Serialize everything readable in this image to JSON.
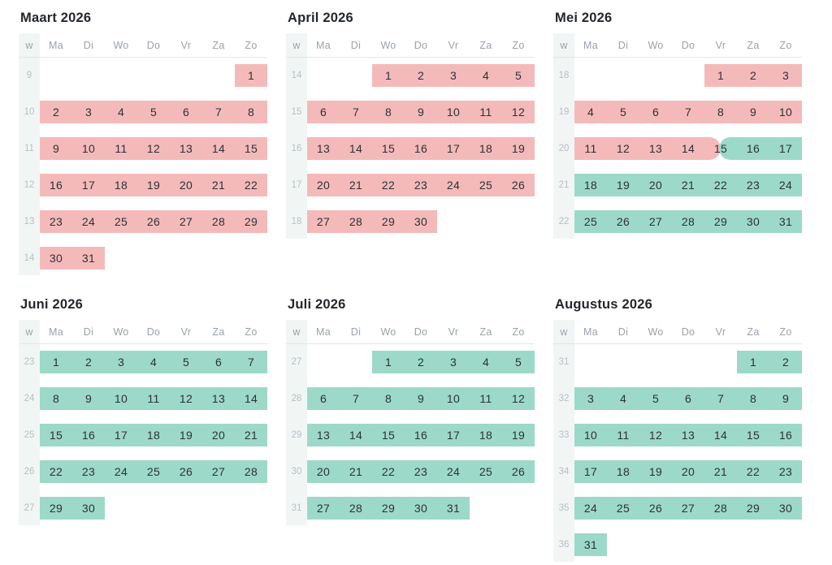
{
  "colors": {
    "pink": "#f4baba",
    "teal": "#9cd9c9",
    "week_strip": "#f1f6f5"
  },
  "weekday_headers": [
    "w",
    "Ma",
    "Di",
    "Wo",
    "Do",
    "Vr",
    "Za",
    "Zo"
  ],
  "calendars": [
    {
      "title": "Maart 2026",
      "weeks": [
        {
          "num": "9",
          "days": [
            "",
            "",
            "",
            "",
            "",
            "",
            "1"
          ],
          "bands": [
            {
              "start": 6,
              "end": 7,
              "color": "pink"
            }
          ]
        },
        {
          "num": "10",
          "days": [
            "2",
            "3",
            "4",
            "5",
            "6",
            "7",
            "8"
          ],
          "bands": [
            {
              "start": 0,
              "end": 7,
              "color": "pink"
            }
          ]
        },
        {
          "num": "11",
          "days": [
            "9",
            "10",
            "11",
            "12",
            "13",
            "14",
            "15"
          ],
          "bands": [
            {
              "start": 0,
              "end": 7,
              "color": "pink"
            }
          ]
        },
        {
          "num": "12",
          "days": [
            "16",
            "17",
            "18",
            "19",
            "20",
            "21",
            "22"
          ],
          "bands": [
            {
              "start": 0,
              "end": 7,
              "color": "pink"
            }
          ]
        },
        {
          "num": "13",
          "days": [
            "23",
            "24",
            "25",
            "26",
            "27",
            "28",
            "29"
          ],
          "bands": [
            {
              "start": 0,
              "end": 7,
              "color": "pink"
            }
          ]
        },
        {
          "num": "14",
          "days": [
            "30",
            "31",
            "",
            "",
            "",
            "",
            ""
          ],
          "bands": [
            {
              "start": 0,
              "end": 2,
              "color": "pink"
            }
          ]
        }
      ]
    },
    {
      "title": "April 2026",
      "weeks": [
        {
          "num": "14",
          "days": [
            "",
            "",
            "1",
            "2",
            "3",
            "4",
            "5"
          ],
          "bands": [
            {
              "start": 2,
              "end": 7,
              "color": "pink"
            }
          ]
        },
        {
          "num": "15",
          "days": [
            "6",
            "7",
            "8",
            "9",
            "10",
            "11",
            "12"
          ],
          "bands": [
            {
              "start": 0,
              "end": 7,
              "color": "pink"
            }
          ]
        },
        {
          "num": "16",
          "days": [
            "13",
            "14",
            "15",
            "16",
            "17",
            "18",
            "19"
          ],
          "bands": [
            {
              "start": 0,
              "end": 7,
              "color": "pink"
            }
          ]
        },
        {
          "num": "17",
          "days": [
            "20",
            "21",
            "22",
            "23",
            "24",
            "25",
            "26"
          ],
          "bands": [
            {
              "start": 0,
              "end": 7,
              "color": "pink"
            }
          ]
        },
        {
          "num": "18",
          "days": [
            "27",
            "28",
            "29",
            "30",
            "",
            "",
            ""
          ],
          "bands": [
            {
              "start": 0,
              "end": 4,
              "color": "pink"
            }
          ]
        }
      ]
    },
    {
      "title": "Mei 2026",
      "weeks": [
        {
          "num": "18",
          "days": [
            "",
            "",
            "",
            "",
            "1",
            "2",
            "3"
          ],
          "bands": [
            {
              "start": 4,
              "end": 7,
              "color": "pink"
            }
          ]
        },
        {
          "num": "19",
          "days": [
            "4",
            "5",
            "6",
            "7",
            "8",
            "9",
            "10"
          ],
          "bands": [
            {
              "start": 0,
              "end": 7,
              "color": "pink"
            }
          ]
        },
        {
          "num": "20",
          "days": [
            "11",
            "12",
            "13",
            "14",
            "15",
            "16",
            "17"
          ],
          "bands": [
            {
              "start": 0,
              "end": 4.5,
              "color": "pink",
              "cap": "right"
            },
            {
              "start": 4.45,
              "end": 7,
              "color": "teal",
              "cap": "left"
            }
          ]
        },
        {
          "num": "21",
          "days": [
            "18",
            "19",
            "20",
            "21",
            "22",
            "23",
            "24"
          ],
          "bands": [
            {
              "start": 0,
              "end": 7,
              "color": "teal"
            }
          ]
        },
        {
          "num": "22",
          "days": [
            "25",
            "26",
            "27",
            "28",
            "29",
            "30",
            "31"
          ],
          "bands": [
            {
              "start": 0,
              "end": 7,
              "color": "teal"
            }
          ]
        }
      ]
    },
    {
      "title": "Juni 2026",
      "weeks": [
        {
          "num": "23",
          "days": [
            "1",
            "2",
            "3",
            "4",
            "5",
            "6",
            "7"
          ],
          "bands": [
            {
              "start": 0,
              "end": 7,
              "color": "teal"
            }
          ]
        },
        {
          "num": "24",
          "days": [
            "8",
            "9",
            "10",
            "11",
            "12",
            "13",
            "14"
          ],
          "bands": [
            {
              "start": 0,
              "end": 7,
              "color": "teal"
            }
          ]
        },
        {
          "num": "25",
          "days": [
            "15",
            "16",
            "17",
            "18",
            "19",
            "20",
            "21"
          ],
          "bands": [
            {
              "start": 0,
              "end": 7,
              "color": "teal"
            }
          ]
        },
        {
          "num": "26",
          "days": [
            "22",
            "23",
            "24",
            "25",
            "26",
            "27",
            "28"
          ],
          "bands": [
            {
              "start": 0,
              "end": 7,
              "color": "teal"
            }
          ]
        },
        {
          "num": "27",
          "days": [
            "29",
            "30",
            "",
            "",
            "",
            "",
            ""
          ],
          "bands": [
            {
              "start": 0,
              "end": 2,
              "color": "teal"
            }
          ]
        }
      ]
    },
    {
      "title": "Juli 2026",
      "weeks": [
        {
          "num": "27",
          "days": [
            "",
            "",
            "1",
            "2",
            "3",
            "4",
            "5"
          ],
          "bands": [
            {
              "start": 2,
              "end": 7,
              "color": "teal"
            }
          ]
        },
        {
          "num": "28",
          "days": [
            "6",
            "7",
            "8",
            "9",
            "10",
            "11",
            "12"
          ],
          "bands": [
            {
              "start": 0,
              "end": 7,
              "color": "teal"
            }
          ]
        },
        {
          "num": "29",
          "days": [
            "13",
            "14",
            "15",
            "16",
            "17",
            "18",
            "19"
          ],
          "bands": [
            {
              "start": 0,
              "end": 7,
              "color": "teal"
            }
          ]
        },
        {
          "num": "30",
          "days": [
            "20",
            "21",
            "22",
            "23",
            "24",
            "25",
            "26"
          ],
          "bands": [
            {
              "start": 0,
              "end": 7,
              "color": "teal"
            }
          ]
        },
        {
          "num": "31",
          "days": [
            "27",
            "28",
            "29",
            "30",
            "31",
            "",
            ""
          ],
          "bands": [
            {
              "start": 0,
              "end": 5,
              "color": "teal"
            }
          ]
        }
      ]
    },
    {
      "title": "Augustus 2026",
      "weeks": [
        {
          "num": "31",
          "days": [
            "",
            "",
            "",
            "",
            "",
            "1",
            "2"
          ],
          "bands": [
            {
              "start": 5,
              "end": 7,
              "color": "teal"
            }
          ]
        },
        {
          "num": "32",
          "days": [
            "3",
            "4",
            "5",
            "6",
            "7",
            "8",
            "9"
          ],
          "bands": [
            {
              "start": 0,
              "end": 7,
              "color": "teal"
            }
          ]
        },
        {
          "num": "33",
          "days": [
            "10",
            "11",
            "12",
            "13",
            "14",
            "15",
            "16"
          ],
          "bands": [
            {
              "start": 0,
              "end": 7,
              "color": "teal"
            }
          ]
        },
        {
          "num": "34",
          "days": [
            "17",
            "18",
            "19",
            "20",
            "21",
            "22",
            "23"
          ],
          "bands": [
            {
              "start": 0,
              "end": 7,
              "color": "teal"
            }
          ]
        },
        {
          "num": "35",
          "days": [
            "24",
            "25",
            "26",
            "27",
            "28",
            "29",
            "30"
          ],
          "bands": [
            {
              "start": 0,
              "end": 7,
              "color": "teal"
            }
          ]
        },
        {
          "num": "36",
          "days": [
            "31",
            "",
            "",
            "",
            "",
            "",
            ""
          ],
          "bands": [
            {
              "start": 0,
              "end": 1,
              "color": "teal"
            }
          ]
        }
      ]
    }
  ]
}
